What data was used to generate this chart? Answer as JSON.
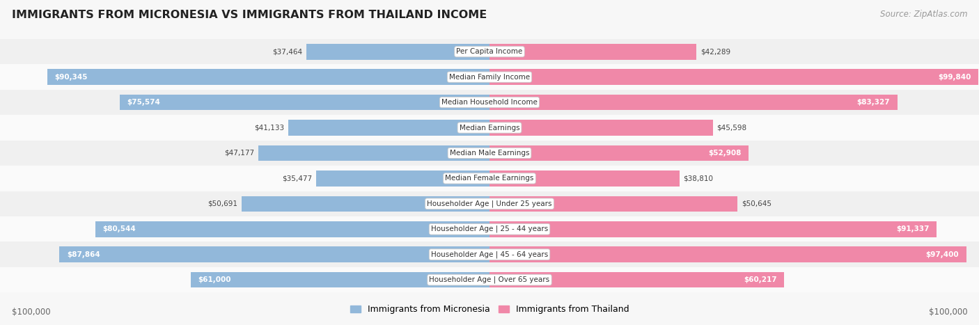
{
  "title": "IMMIGRANTS FROM MICRONESIA VS IMMIGRANTS FROM THAILAND INCOME",
  "source": "Source: ZipAtlas.com",
  "categories": [
    "Per Capita Income",
    "Median Family Income",
    "Median Household Income",
    "Median Earnings",
    "Median Male Earnings",
    "Median Female Earnings",
    "Householder Age | Under 25 years",
    "Householder Age | 25 - 44 years",
    "Householder Age | 45 - 64 years",
    "Householder Age | Over 65 years"
  ],
  "micronesia_values": [
    37464,
    90345,
    75574,
    41133,
    47177,
    35477,
    50691,
    80544,
    87864,
    61000
  ],
  "thailand_values": [
    42289,
    99840,
    83327,
    45598,
    52908,
    38810,
    50645,
    91337,
    97400,
    60217
  ],
  "micronesia_labels": [
    "$37,464",
    "$90,345",
    "$75,574",
    "$41,133",
    "$47,177",
    "$35,477",
    "$50,691",
    "$80,544",
    "$87,864",
    "$61,000"
  ],
  "thailand_labels": [
    "$42,289",
    "$99,840",
    "$83,327",
    "$45,598",
    "$52,908",
    "$38,810",
    "$50,645",
    "$91,337",
    "$97,400",
    "$60,217"
  ],
  "micronesia_color": "#92b8da",
  "thailand_color": "#f088a8",
  "max_value": 100000,
  "bg_color": "#f7f7f7",
  "row_colors": [
    "#f0f0f0",
    "#fafafa"
  ],
  "legend_micronesia": "Immigrants from Micronesia",
  "legend_thailand": "Immigrants from Thailand",
  "xlabel_left": "$100,000",
  "xlabel_right": "$100,000",
  "label_inside_threshold": 0.52,
  "inside_label_color": "#ffffff",
  "outside_label_color": "#444444",
  "inside_label_fontsize": 7.5,
  "outside_label_fontsize": 7.5,
  "category_fontsize": 7.5,
  "title_fontsize": 11.5,
  "source_fontsize": 8.5,
  "legend_fontsize": 9.0,
  "axis_label_fontsize": 8.5
}
